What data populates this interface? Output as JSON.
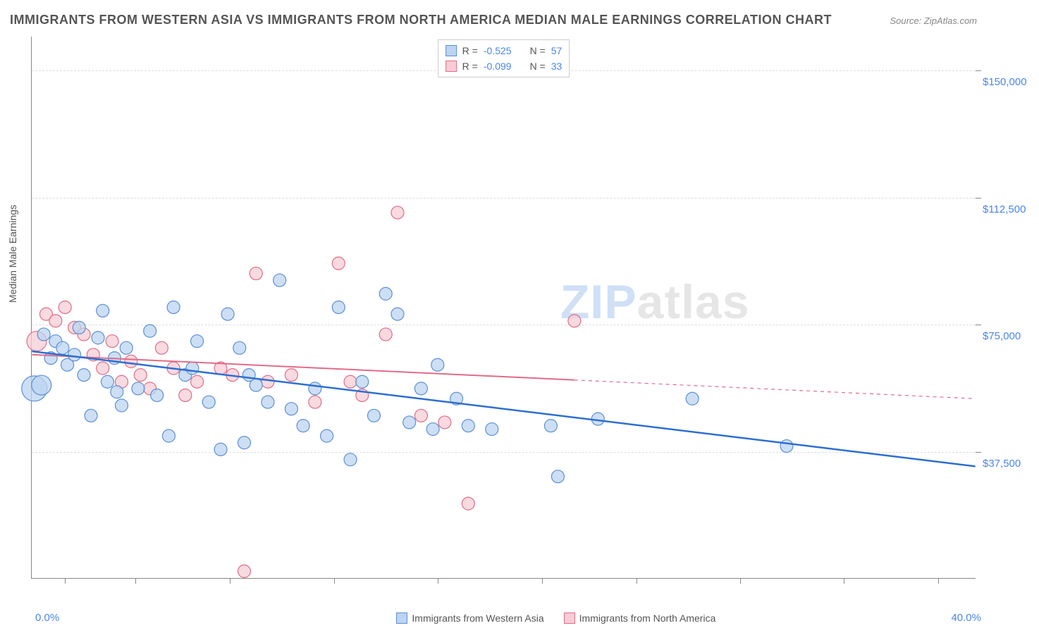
{
  "title": "IMMIGRANTS FROM WESTERN ASIA VS IMMIGRANTS FROM NORTH AMERICA MEDIAN MALE EARNINGS CORRELATION CHART",
  "source": "Source: ZipAtlas.com",
  "watermark": {
    "part1": "ZIP",
    "part2": "atlas"
  },
  "chart": {
    "type": "scatter",
    "background_color": "#ffffff",
    "grid_color": "#dddddd",
    "axis_color": "#888888",
    "y_axis_title": "Median Male Earnings",
    "x_axis": {
      "min": 0.0,
      "max": 40.0,
      "label_left": "0.0%",
      "label_right": "40.0%",
      "tick_positions_pct": [
        3.5,
        11,
        21,
        32,
        43,
        54,
        64,
        75,
        86,
        96
      ]
    },
    "y_axis": {
      "min": 0,
      "max": 160000,
      "gridlines": [
        {
          "value": 37500,
          "label": "$37,500"
        },
        {
          "value": 75000,
          "label": "$75,000"
        },
        {
          "value": 112500,
          "label": "$112,500"
        },
        {
          "value": 150000,
          "label": "$150,000"
        }
      ]
    },
    "series": [
      {
        "name": "Immigrants from Western Asia",
        "fill": "#bcd4f0",
        "stroke": "#5b8fd6",
        "marker_radius": 9,
        "r_value": "-0.525",
        "n_value": "57",
        "trend": {
          "color": "#2d6fd1",
          "width": 2.5,
          "y_at_x0": 67000,
          "y_at_xmax": 33000,
          "solid_until_x": 40.0
        },
        "points": [
          {
            "x": 0.1,
            "y": 56000,
            "r": 18
          },
          {
            "x": 0.4,
            "y": 57000,
            "r": 14
          },
          {
            "x": 0.5,
            "y": 72000
          },
          {
            "x": 0.8,
            "y": 65000
          },
          {
            "x": 1.0,
            "y": 70000
          },
          {
            "x": 1.3,
            "y": 68000
          },
          {
            "x": 1.5,
            "y": 63000
          },
          {
            "x": 1.8,
            "y": 66000
          },
          {
            "x": 2.0,
            "y": 74000
          },
          {
            "x": 2.2,
            "y": 60000
          },
          {
            "x": 2.5,
            "y": 48000
          },
          {
            "x": 2.8,
            "y": 71000
          },
          {
            "x": 3.0,
            "y": 79000
          },
          {
            "x": 3.2,
            "y": 58000
          },
          {
            "x": 3.5,
            "y": 65000
          },
          {
            "x": 3.8,
            "y": 51000
          },
          {
            "x": 4.0,
            "y": 68000
          },
          {
            "x": 4.5,
            "y": 56000
          },
          {
            "x": 5.0,
            "y": 73000
          },
          {
            "x": 5.3,
            "y": 54000
          },
          {
            "x": 5.8,
            "y": 42000
          },
          {
            "x": 6.0,
            "y": 80000
          },
          {
            "x": 6.5,
            "y": 60000
          },
          {
            "x": 7.0,
            "y": 70000
          },
          {
            "x": 7.5,
            "y": 52000
          },
          {
            "x": 8.0,
            "y": 38000
          },
          {
            "x": 8.3,
            "y": 78000
          },
          {
            "x": 8.8,
            "y": 68000
          },
          {
            "x": 9.0,
            "y": 40000
          },
          {
            "x": 9.5,
            "y": 57000
          },
          {
            "x": 10.0,
            "y": 52000
          },
          {
            "x": 10.5,
            "y": 88000
          },
          {
            "x": 11.0,
            "y": 50000
          },
          {
            "x": 11.5,
            "y": 45000
          },
          {
            "x": 12.0,
            "y": 56000
          },
          {
            "x": 12.5,
            "y": 42000
          },
          {
            "x": 13.0,
            "y": 80000
          },
          {
            "x": 13.5,
            "y": 35000
          },
          {
            "x": 14.0,
            "y": 58000
          },
          {
            "x": 14.5,
            "y": 48000
          },
          {
            "x": 15.0,
            "y": 84000
          },
          {
            "x": 15.5,
            "y": 78000
          },
          {
            "x": 16.0,
            "y": 46000
          },
          {
            "x": 16.5,
            "y": 56000
          },
          {
            "x": 17.0,
            "y": 44000
          },
          {
            "x": 17.2,
            "y": 63000
          },
          {
            "x": 18.0,
            "y": 53000
          },
          {
            "x": 18.5,
            "y": 45000
          },
          {
            "x": 19.5,
            "y": 44000
          },
          {
            "x": 22.0,
            "y": 45000
          },
          {
            "x": 22.3,
            "y": 30000
          },
          {
            "x": 24.0,
            "y": 47000
          },
          {
            "x": 28.0,
            "y": 53000
          },
          {
            "x": 32.0,
            "y": 39000
          },
          {
            "x": 3.6,
            "y": 55000
          },
          {
            "x": 6.8,
            "y": 62000
          },
          {
            "x": 9.2,
            "y": 60000
          }
        ]
      },
      {
        "name": "Immigrants from North America",
        "fill": "#f6cdd6",
        "stroke": "#e06c88",
        "marker_radius": 9,
        "r_value": "-0.099",
        "n_value": "33",
        "trend": {
          "color": "#e06c88",
          "width": 2,
          "y_at_x0": 66000,
          "y_at_xmax": 53000,
          "solid_until_x": 23.0
        },
        "points": [
          {
            "x": 0.2,
            "y": 70000,
            "r": 14
          },
          {
            "x": 0.6,
            "y": 78000
          },
          {
            "x": 1.0,
            "y": 76000
          },
          {
            "x": 1.4,
            "y": 80000
          },
          {
            "x": 1.8,
            "y": 74000
          },
          {
            "x": 2.2,
            "y": 72000
          },
          {
            "x": 2.6,
            "y": 66000
          },
          {
            "x": 3.0,
            "y": 62000
          },
          {
            "x": 3.4,
            "y": 70000
          },
          {
            "x": 3.8,
            "y": 58000
          },
          {
            "x": 4.2,
            "y": 64000
          },
          {
            "x": 4.6,
            "y": 60000
          },
          {
            "x": 5.0,
            "y": 56000
          },
          {
            "x": 5.5,
            "y": 68000
          },
          {
            "x": 6.0,
            "y": 62000
          },
          {
            "x": 6.5,
            "y": 54000
          },
          {
            "x": 7.0,
            "y": 58000
          },
          {
            "x": 8.0,
            "y": 62000
          },
          {
            "x": 8.5,
            "y": 60000
          },
          {
            "x": 9.0,
            "y": 2000
          },
          {
            "x": 9.5,
            "y": 90000
          },
          {
            "x": 10.0,
            "y": 58000
          },
          {
            "x": 11.0,
            "y": 60000
          },
          {
            "x": 12.0,
            "y": 52000
          },
          {
            "x": 13.0,
            "y": 93000
          },
          {
            "x": 13.5,
            "y": 58000
          },
          {
            "x": 14.0,
            "y": 54000
          },
          {
            "x": 15.0,
            "y": 72000
          },
          {
            "x": 15.5,
            "y": 108000
          },
          {
            "x": 16.5,
            "y": 48000
          },
          {
            "x": 17.5,
            "y": 46000
          },
          {
            "x": 18.5,
            "y": 22000
          },
          {
            "x": 23.0,
            "y": 76000
          }
        ]
      }
    ]
  },
  "legend_top": {
    "r_label": "R =",
    "n_label": "N ="
  },
  "legend_bottom": {
    "series1": "Immigrants from Western Asia",
    "series2": "Immigrants from North America"
  }
}
